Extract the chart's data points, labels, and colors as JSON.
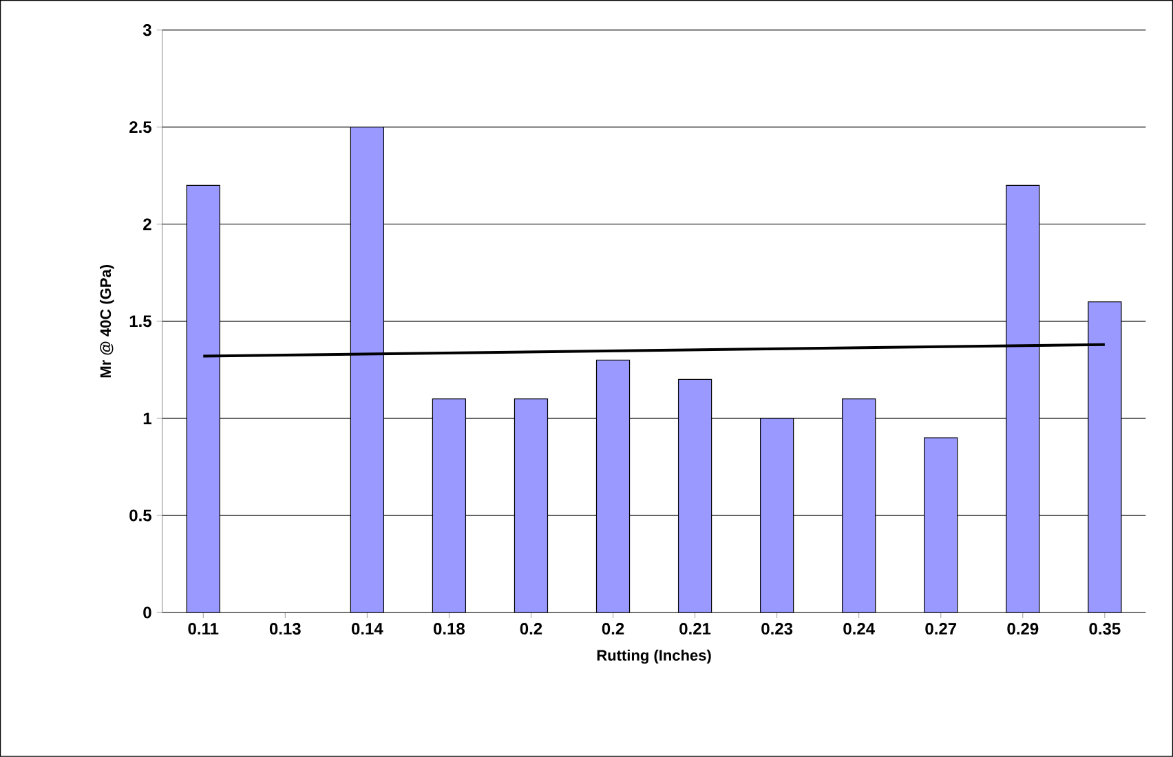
{
  "chart_data": {
    "type": "bar",
    "xlabel": "Rutting (Inches)",
    "ylabel": "Mr @ 40C (GPa)",
    "categories": [
      "0.11",
      "0.13",
      "0.14",
      "0.18",
      "0.2",
      "0.2",
      "0.21",
      "0.23",
      "0.24",
      "0.27",
      "0.29",
      "0.35"
    ],
    "series": [
      {
        "color": "#9999ff",
        "values": [
          2.2,
          null,
          2.5,
          1.1,
          1.1,
          1.3,
          1.2,
          1.0,
          1.1,
          0.9,
          2.2,
          1.6
        ]
      },
      {
        "type": "line",
        "color": "#000000",
        "x": [
          "0.11",
          "0.35"
        ],
        "values": [
          1.32,
          1.38
        ]
      }
    ],
    "ylim": [
      0,
      3
    ],
    "yticks": [
      0,
      0.5,
      1,
      1.5,
      2,
      2.5,
      3
    ],
    "grid": "y",
    "marker": "none",
    "line_style": "solid"
  }
}
